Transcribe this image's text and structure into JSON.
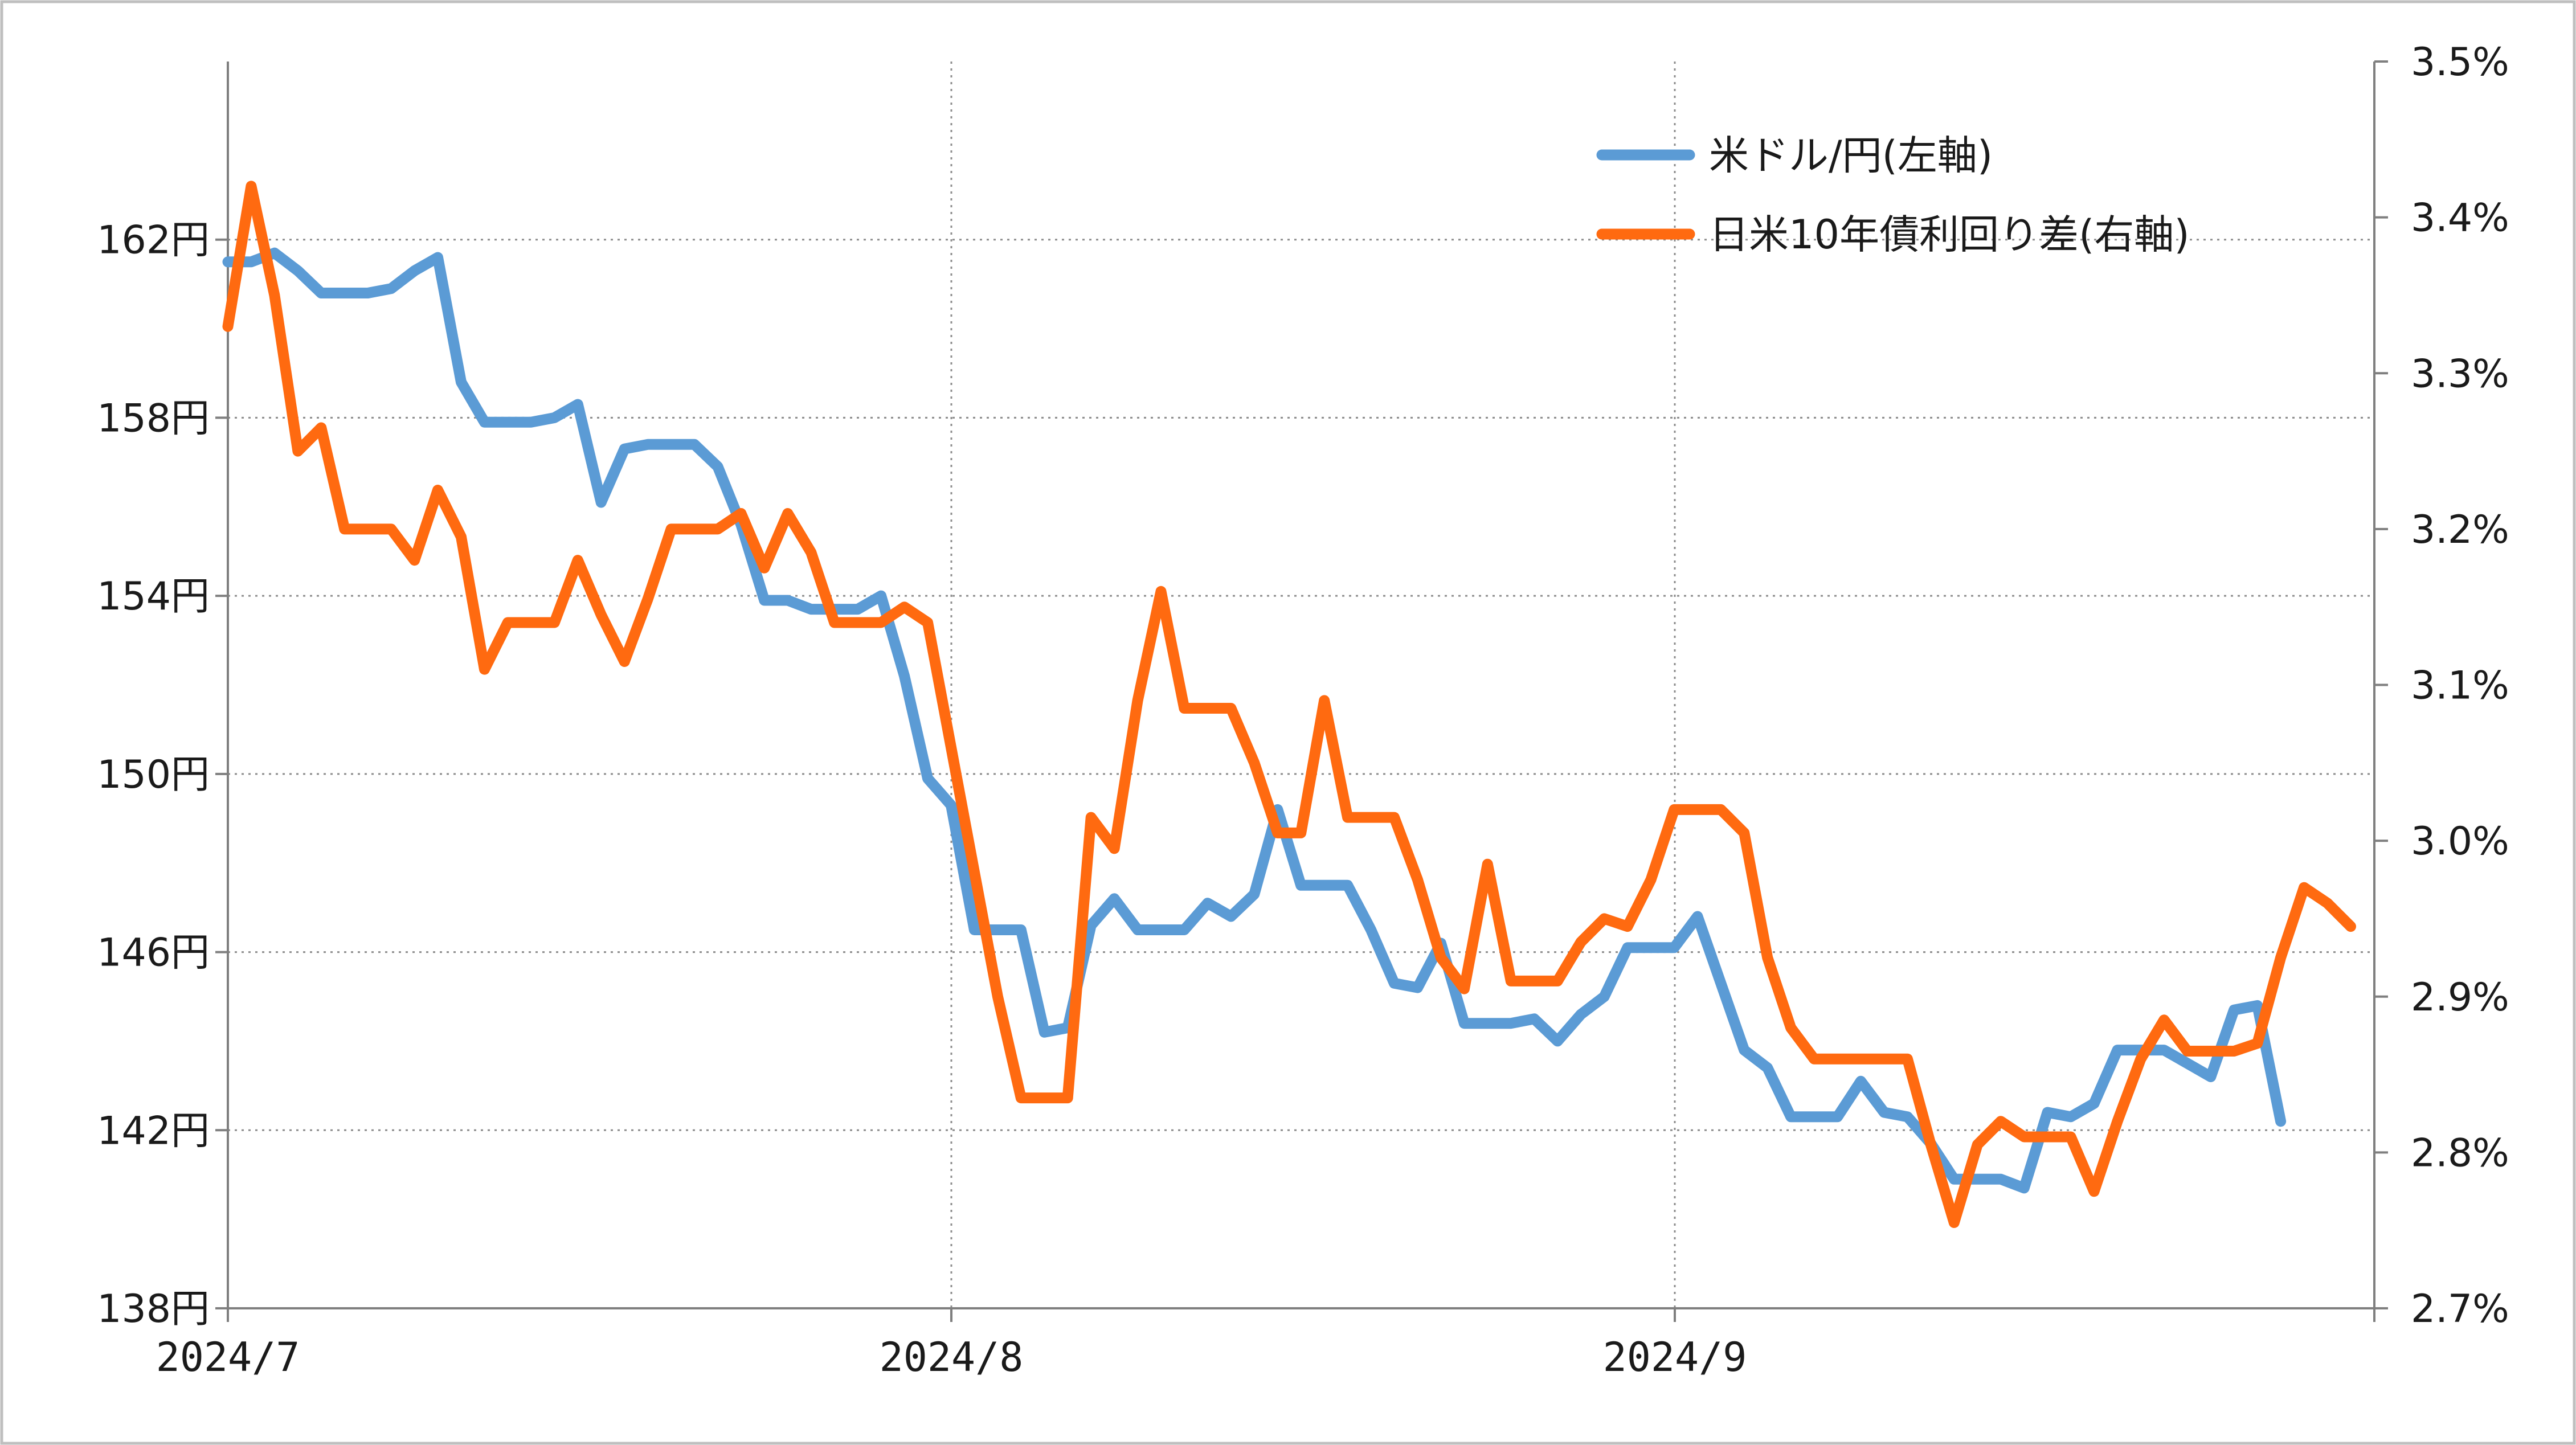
{
  "chart_data": {
    "type": "line",
    "title": "",
    "x_tick_labels": [
      "2024/7",
      "2024/8",
      "2024/9"
    ],
    "y_left": {
      "ylim": [
        138,
        166
      ],
      "ticks": [
        138,
        142,
        146,
        150,
        154,
        158,
        162
      ],
      "tick_labels": [
        "138円",
        "142円",
        "146円",
        "150円",
        "154円",
        "158円",
        "162円"
      ]
    },
    "y_right": {
      "ylim": [
        2.7,
        3.5
      ],
      "ticks": [
        2.7,
        2.8,
        2.9,
        3.0,
        3.1,
        3.2,
        3.3,
        3.4,
        3.5
      ],
      "tick_labels": [
        "2.7%",
        "2.8%",
        "2.9%",
        "3.0%",
        "3.1%",
        "3.2%",
        "3.3%",
        "3.4%",
        "3.5%"
      ]
    },
    "grid": {
      "horizontal": true,
      "vertical": true,
      "style": "dotted"
    },
    "legend_position": "top-right",
    "series": [
      {
        "name": "米ドル/円(左軸)",
        "axis": "left",
        "color": "#5b9bd5",
        "values": [
          161.5,
          161.5,
          161.7,
          161.3,
          160.8,
          160.8,
          160.8,
          160.9,
          161.3,
          161.6,
          158.8,
          157.9,
          157.9,
          157.9,
          158.0,
          158.3,
          156.1,
          157.3,
          157.4,
          157.4,
          157.4,
          156.9,
          155.6,
          153.9,
          153.9,
          153.7,
          153.7,
          153.7,
          154.0,
          152.2,
          149.9,
          149.3,
          146.5,
          146.5,
          146.5,
          144.2,
          144.3,
          146.6,
          147.2,
          146.5,
          146.5,
          146.5,
          147.1,
          146.8,
          147.3,
          149.2,
          147.5,
          147.5,
          147.5,
          146.5,
          145.3,
          145.2,
          146.2,
          144.4,
          144.4,
          144.4,
          144.5,
          144.0,
          144.6,
          145.0,
          146.1,
          146.1,
          146.1,
          146.8,
          145.3,
          143.8,
          143.4,
          142.3,
          142.3,
          142.3,
          143.1,
          142.4,
          142.3,
          141.7,
          140.9,
          140.9,
          140.9,
          140.7,
          142.4,
          142.3,
          142.6,
          143.8,
          143.8,
          143.8,
          143.5,
          143.2,
          144.7,
          144.8,
          142.2
        ]
      },
      {
        "name": "日米10年債利回り差(右軸)",
        "axis": "right",
        "color": "#ff6a10",
        "values": [
          3.33,
          3.42,
          3.35,
          3.25,
          3.265,
          3.2,
          3.2,
          3.2,
          3.18,
          3.225,
          3.195,
          3.11,
          3.14,
          3.14,
          3.14,
          3.18,
          3.145,
          3.115,
          3.155,
          3.2,
          3.2,
          3.2,
          3.21,
          3.175,
          3.21,
          3.185,
          3.14,
          3.14,
          3.14,
          3.15,
          3.14,
          3.06,
          2.98,
          2.9,
          2.835,
          2.835,
          2.835,
          3.015,
          2.995,
          3.09,
          3.16,
          3.085,
          3.085,
          3.085,
          3.05,
          3.005,
          3.005,
          3.09,
          3.015,
          3.015,
          3.015,
          2.975,
          2.925,
          2.905,
          2.985,
          2.91,
          2.91,
          2.91,
          2.935,
          2.95,
          2.945,
          2.975,
          3.02,
          3.02,
          3.02,
          3.005,
          2.925,
          2.88,
          2.86,
          2.86,
          2.86,
          2.86,
          2.86,
          2.805,
          2.755,
          2.805,
          2.82,
          2.81,
          2.81,
          2.81,
          2.775,
          2.82,
          2.86,
          2.885,
          2.865,
          2.865,
          2.865,
          2.87,
          2.925,
          2.97,
          2.96,
          2.945
        ]
      }
    ]
  }
}
